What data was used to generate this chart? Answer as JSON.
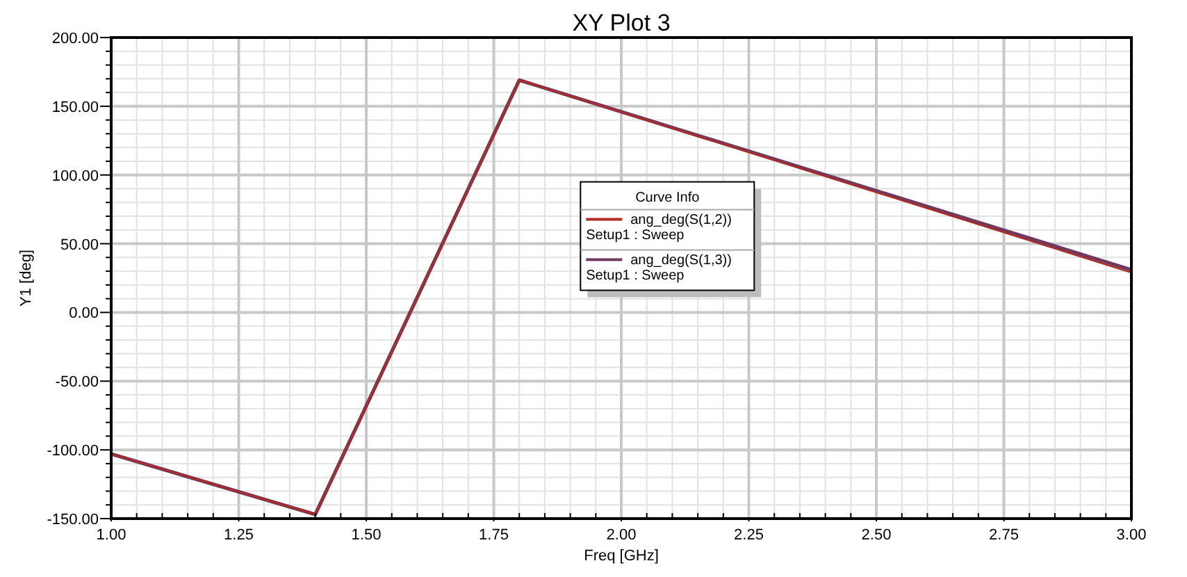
{
  "chart_data": {
    "type": "line",
    "title": "XY Plot 3",
    "xlabel": "Freq [GHz]",
    "ylabel": "Y1 [deg]",
    "legend_title": "Curve Info",
    "legend": "center",
    "grid": true,
    "line_style": "solid",
    "xlim": [
      1,
      3
    ],
    "ylim": [
      -150,
      200
    ],
    "xticks": [
      {
        "value": 1,
        "label": "1.00"
      },
      {
        "value": 1.25,
        "label": "1.25"
      },
      {
        "value": 1.5,
        "label": "1.50"
      },
      {
        "value": 1.75,
        "label": "1.75"
      },
      {
        "value": 2,
        "label": "2.00"
      },
      {
        "value": 2.25,
        "label": "2.25"
      },
      {
        "value": 2.5,
        "label": "2.50"
      },
      {
        "value": 2.75,
        "label": "2.75"
      },
      {
        "value": 3,
        "label": "3.00"
      }
    ],
    "yticks": [
      {
        "value": -150,
        "label": "-150.00"
      },
      {
        "value": -100,
        "label": "-100.00"
      },
      {
        "value": -50,
        "label": "-50.00"
      },
      {
        "value": 0,
        "label": "0.00"
      },
      {
        "value": 50,
        "label": "50.00"
      },
      {
        "value": 100,
        "label": "100.00"
      },
      {
        "value": 150,
        "label": "150.00"
      },
      {
        "value": 200,
        "label": "200.00"
      }
    ],
    "series": [
      {
        "name": "ang_deg(S(1,2))\nSetup1 : Sweep",
        "color": "#b22a22",
        "x": [
          1,
          1.4,
          1.8,
          3
        ],
        "values": [
          -103,
          -147,
          169,
          29
        ]
      },
      {
        "name": "ang_deg(S(1,3))\nSetup1 : Sweep",
        "color": "#6e3a5e",
        "x": [
          1,
          1.4,
          1.8,
          3
        ],
        "values": [
          -103,
          -147,
          169,
          31
        ]
      }
    ]
  }
}
